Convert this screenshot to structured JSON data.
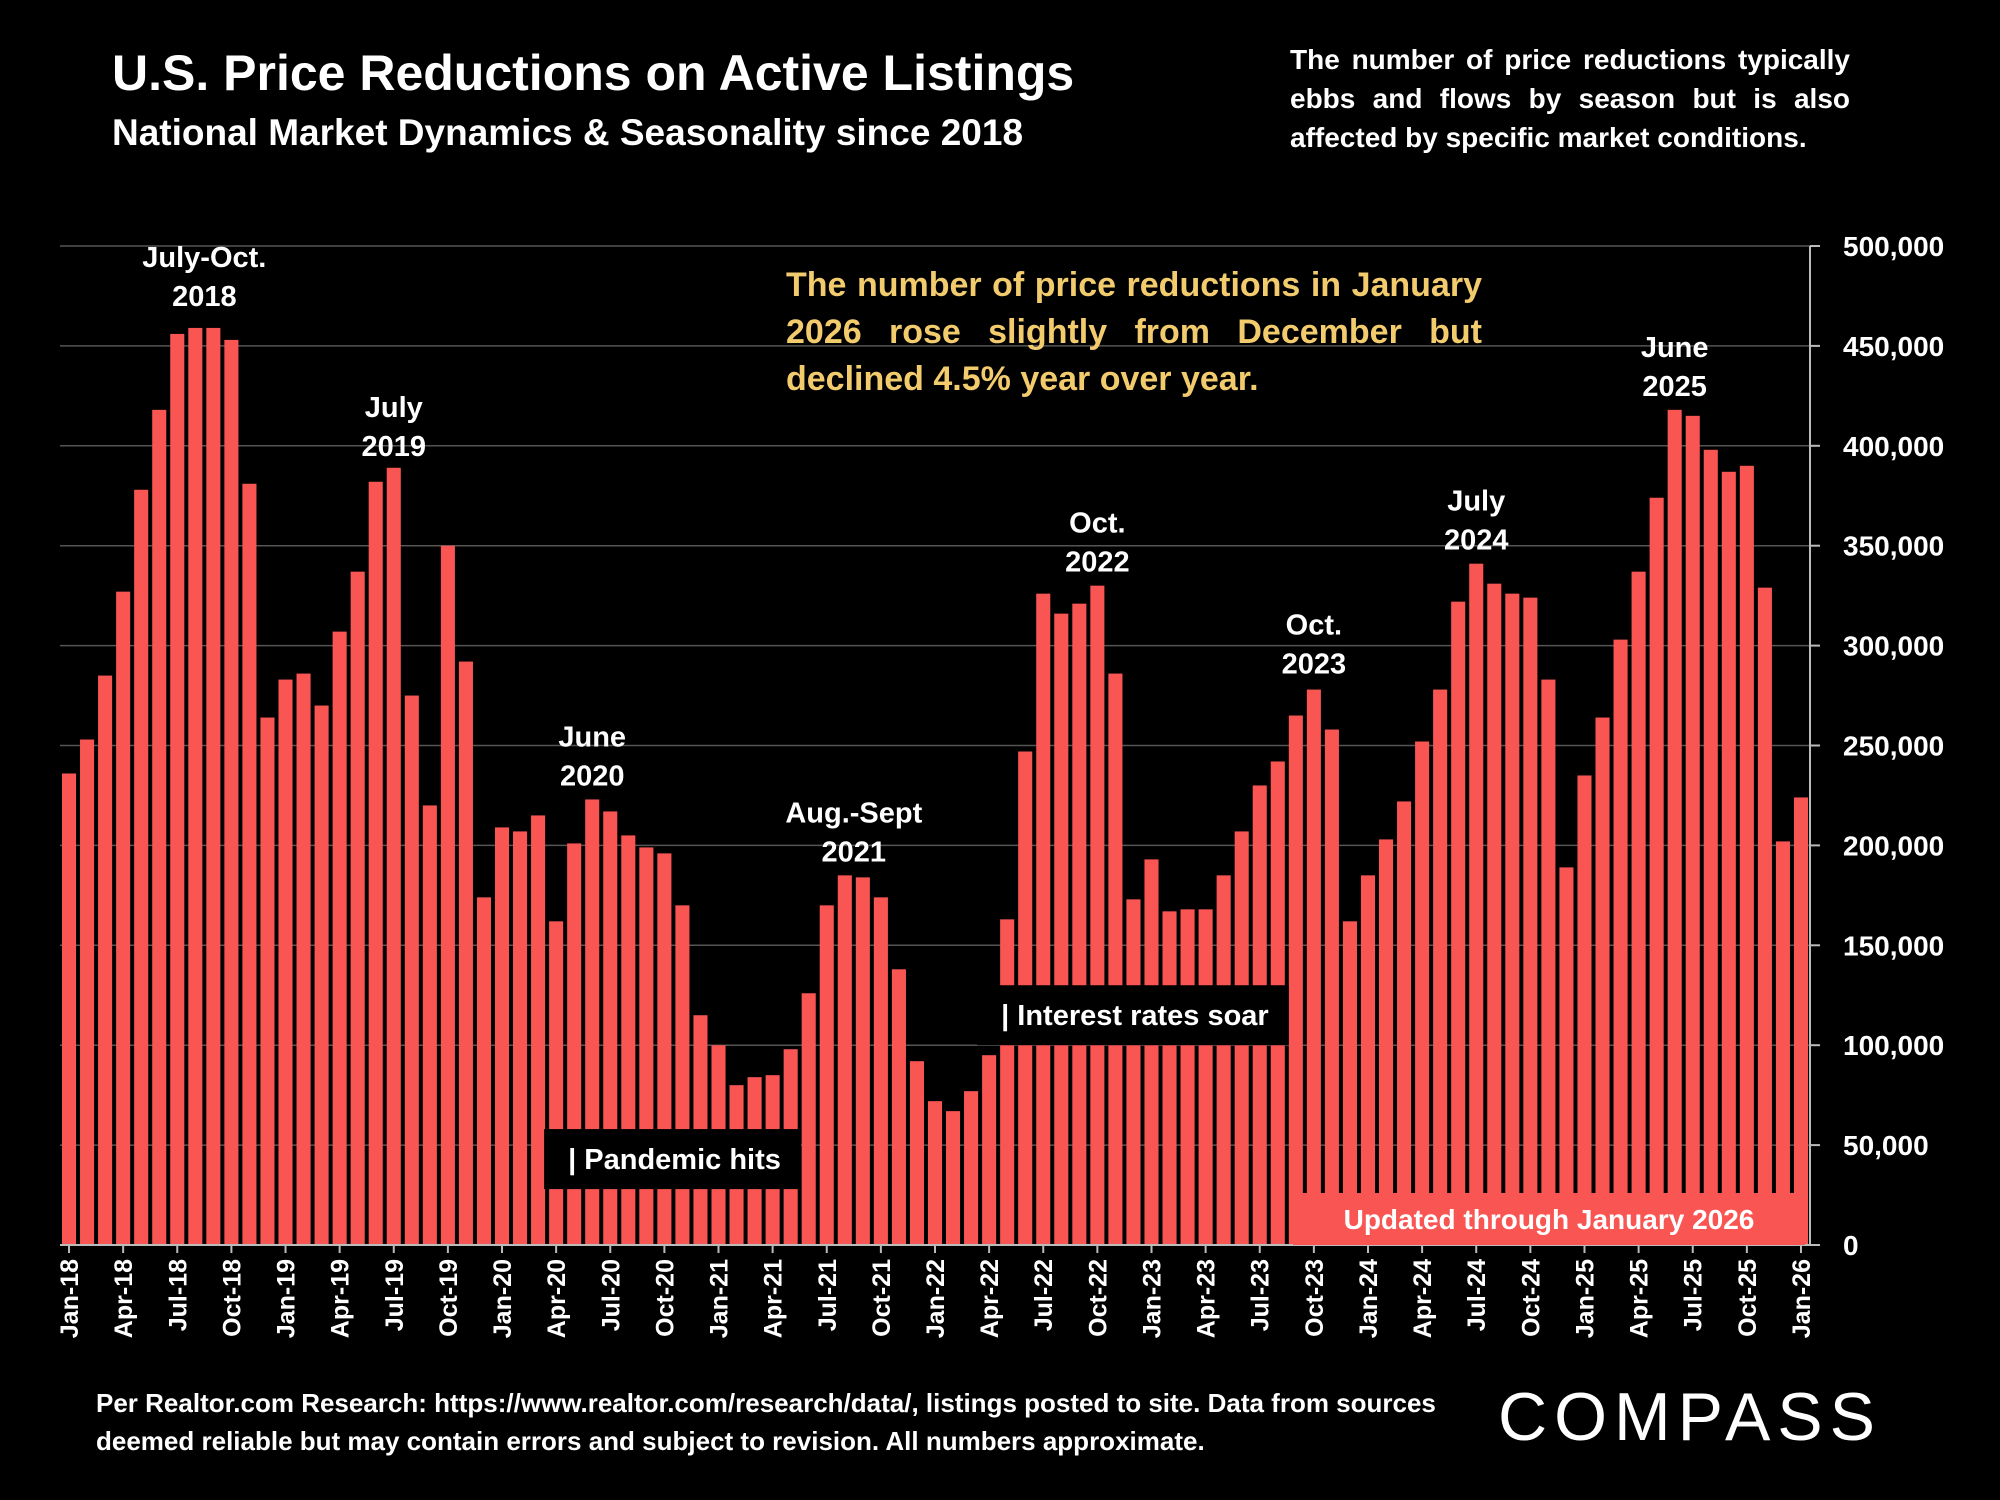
{
  "header": {
    "title": "U.S. Price Reductions on Active Listings",
    "subtitle": "National Market Dynamics & Seasonality since 2018",
    "note": "The number of price reductions typically ebbs and flows by season but is also affected by specific market conditions."
  },
  "highlight_text": "The number of price reductions in January 2026 rose slightly from December but declined 4.5% year over year.",
  "footer": {
    "source": "Per Realtor.com Research:  https://www.realtor.com/research/data/, listings posted to site. Data from sources deemed reliable but may contain errors and subject to revision. All numbers approximate.",
    "logo": "COMPASS"
  },
  "colors": {
    "bar": "#f95552",
    "background": "#000000",
    "highlight": "#f2cb6d",
    "grid": "#555555"
  },
  "chart_data": {
    "type": "bar",
    "x_tick_labels": [
      "Jan-18",
      "Apr-18",
      "Jul-18",
      "Oct-18",
      "Jan-19",
      "Apr-19",
      "Jul-19",
      "Oct-19",
      "Jan-20",
      "Apr-20",
      "Jul-20",
      "Oct-20",
      "Jan-21",
      "Apr-21",
      "Jul-21",
      "Oct-21",
      "Jan-22",
      "Apr-22",
      "Jul-22",
      "Oct-22",
      "Jan-23",
      "Apr-23",
      "Jul-23",
      "Oct-23",
      "Jan-24",
      "Apr-24",
      "Jul-24",
      "Oct-24",
      "Jan-25",
      "Apr-25",
      "Jul-25",
      "Oct-25",
      "Jan-26"
    ],
    "x_tick_every": 3,
    "values": [
      236000,
      253000,
      285000,
      327000,
      378000,
      418000,
      456000,
      459000,
      459000,
      453000,
      381000,
      264000,
      283000,
      286000,
      270000,
      307000,
      337000,
      382000,
      389000,
      275000,
      220000,
      350000,
      292000,
      174000,
      209000,
      207000,
      215000,
      162000,
      201000,
      223000,
      217000,
      205000,
      199000,
      196000,
      170000,
      115000,
      100000,
      80000,
      84000,
      85000,
      98000,
      126000,
      170000,
      185000,
      184000,
      174000,
      138000,
      92000,
      72000,
      67000,
      77000,
      95000,
      163000,
      247000,
      326000,
      316000,
      321000,
      330000,
      286000,
      173000,
      193000,
      167000,
      168000,
      168000,
      185000,
      207000,
      230000,
      242000,
      265000,
      278000,
      258000,
      162000,
      185000,
      203000,
      222000,
      252000,
      278000,
      322000,
      341000,
      331000,
      326000,
      324000,
      283000,
      189000,
      235000,
      264000,
      303000,
      337000,
      374000,
      418000,
      415000,
      398000,
      387000,
      390000,
      329000,
      202000,
      224000
    ],
    "ylim": [
      0,
      500000
    ],
    "y_ticks": [
      "0",
      "50,000",
      "100,000",
      "150,000",
      "200,000",
      "250,000",
      "300,000",
      "350,000",
      "400,000",
      "450,000",
      "500,000"
    ],
    "y_axis_side": "right",
    "grid": true,
    "annotations": [
      {
        "text": [
          "July-Oct.",
          "2018"
        ],
        "index": 7.5,
        "y": 470000
      },
      {
        "text": [
          "July",
          "2019"
        ],
        "index": 18,
        "y": 395000
      },
      {
        "text": [
          "June",
          "2020"
        ],
        "index": 29,
        "y": 230000
      },
      {
        "text": [
          "Aug.-Sept",
          "2021"
        ],
        "index": 43.5,
        "y": 192000
      },
      {
        "text": [
          "Oct.",
          "2022"
        ],
        "index": 57,
        "y": 337000
      },
      {
        "text": [
          "Oct.",
          "2023"
        ],
        "index": 69,
        "y": 286000
      },
      {
        "text": [
          "July",
          "2024"
        ],
        "index": 78,
        "y": 348000
      },
      {
        "text": [
          "June",
          "2025"
        ],
        "index": 89,
        "y": 425000
      }
    ],
    "events": [
      {
        "text": "| Pandemic hits",
        "index": 27,
        "y": 43000
      },
      {
        "text": "| Interest rates soar",
        "index": 51,
        "y": 115000
      }
    ],
    "badge": "Updated through January 2026"
  }
}
